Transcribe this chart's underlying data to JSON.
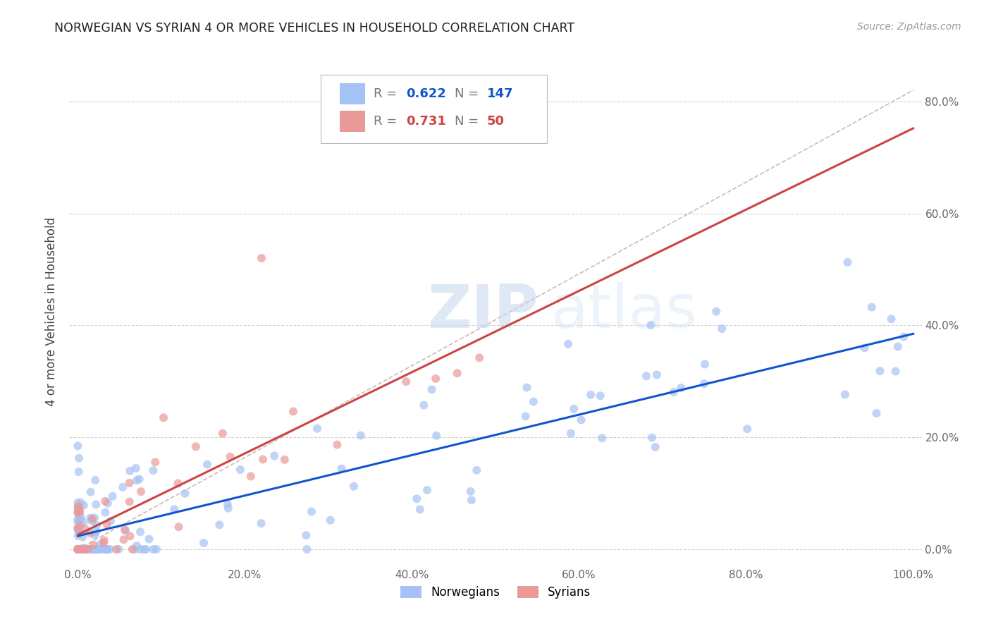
{
  "title": "NORWEGIAN VS SYRIAN 4 OR MORE VEHICLES IN HOUSEHOLD CORRELATION CHART",
  "source": "Source: ZipAtlas.com",
  "ylabel": "4 or more Vehicles in Household",
  "norwegian_R": 0.622,
  "norwegian_N": 147,
  "syrian_R": 0.731,
  "syrian_N": 50,
  "norwegian_color": "#a4c2f4",
  "syrian_color": "#ea9999",
  "norwegian_line_color": "#1155cc",
  "syrian_line_color": "#cc4444",
  "ref_line_color": "#ccaaaa",
  "background_color": "#ffffff",
  "grid_color": "#cccccc",
  "watermark_zip": "ZIP",
  "watermark_atlas": "atlas",
  "xlim": [
    -0.01,
    1.01
  ],
  "ylim": [
    -0.03,
    0.88
  ]
}
